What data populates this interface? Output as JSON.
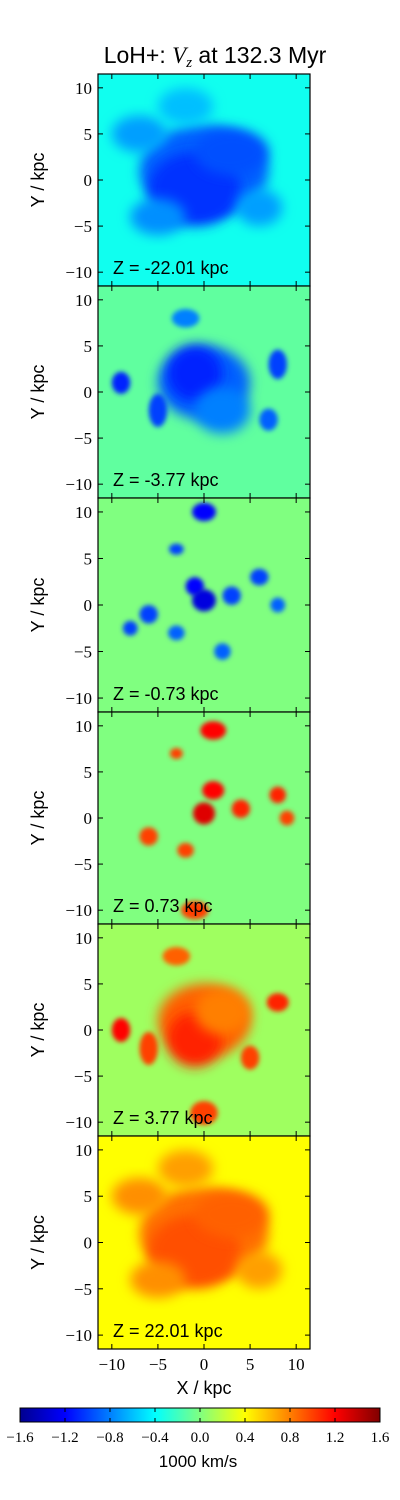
{
  "title_prefix": "LoH+: ",
  "title_var": "V",
  "title_sub": "z",
  "title_suffix": " at 132.3 Myr",
  "chart_data": {
    "type": "heatmap",
    "xlabel": "X / kpc",
    "ylabel": "Y / kpc",
    "x_ticks": [
      -10,
      -5,
      0,
      5,
      10
    ],
    "y_ticks": [
      10,
      5,
      0,
      -5,
      -10
    ],
    "xlim": [
      -11.5,
      11.5
    ],
    "ylim": [
      -11.5,
      11.5
    ],
    "colorbar": {
      "label": "1000 km/s",
      "range": [
        -1.6,
        1.6
      ],
      "ticks": [
        -1.6,
        -1.2,
        -0.8,
        -0.4,
        0.0,
        0.4,
        0.8,
        1.2,
        1.6
      ],
      "colormap": "jet"
    },
    "panels": [
      {
        "label": "Z = -22.01 kpc",
        "z": -22.01,
        "bg": -0.35
      },
      {
        "label": "Z = -3.77 kpc",
        "z": -3.77,
        "bg": -0.1
      },
      {
        "label": "Z = -0.73 kpc",
        "z": -0.73,
        "bg": 0.0
      },
      {
        "label": "Z = 0.73 kpc",
        "z": 0.73,
        "bg": 0.0
      },
      {
        "label": "Z = 3.77 kpc",
        "z": 3.77,
        "bg": 0.1
      },
      {
        "label": "Z = 22.01 kpc",
        "z": 22.01,
        "bg": 0.4
      }
    ]
  }
}
